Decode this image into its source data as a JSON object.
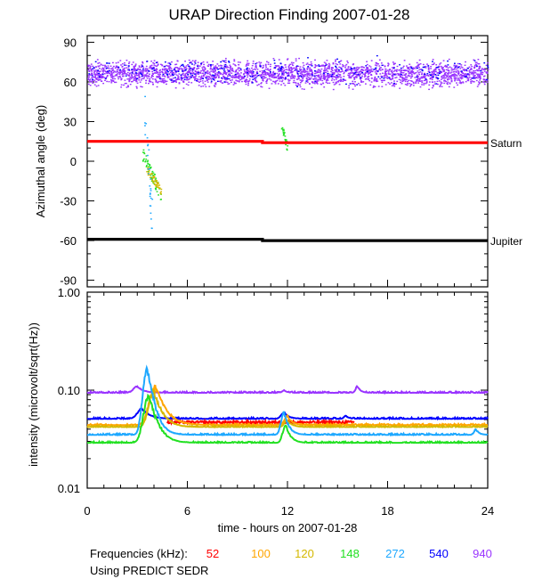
{
  "title": "URAP Direction Finding  2007-01-28",
  "footer": {
    "freq_label": "Frequencies (kHz):",
    "frequencies": [
      {
        "label": "52",
        "color": "#ff0000"
      },
      {
        "label": "100",
        "color": "#ffa500"
      },
      {
        "label": "120",
        "color": "#d4b800"
      },
      {
        "label": "148",
        "color": "#22e022"
      },
      {
        "label": "272",
        "color": "#1ea8ff"
      },
      {
        "label": "540",
        "color": "#0000ff"
      },
      {
        "label": "940",
        "color": "#9933ff"
      }
    ],
    "source_note": "Using PREDICT SEDR"
  },
  "chart_data": [
    {
      "type": "scatter",
      "ylabel": "Azimuthal angle (deg)",
      "xlim": [
        0,
        24
      ],
      "ylim": [
        -95,
        95
      ],
      "yticks": [
        "90",
        "60",
        "30",
        "0",
        "-30",
        "-60",
        "-90"
      ],
      "ytick_values": [
        90,
        60,
        30,
        0,
        -30,
        -60,
        -90
      ],
      "reference_lines": [
        {
          "name": "Saturn",
          "color": "#ff0000",
          "points": [
            [
              0,
              15
            ],
            [
              10.5,
              15
            ],
            [
              10.5,
              14
            ],
            [
              24,
              14
            ]
          ]
        },
        {
          "name": "Jupiter",
          "color": "#000000",
          "points": [
            [
              0,
              -59
            ],
            [
              10.5,
              -59
            ],
            [
              10.5,
              -60
            ],
            [
              24,
              -60
            ]
          ]
        }
      ],
      "scatter_groups": [
        {
          "frequency_khz": 940,
          "color": "#9933ff",
          "description": "continuous band",
          "x_range": [
            0,
            24
          ],
          "y_range": [
            53,
            80
          ]
        },
        {
          "frequency_khz": 540,
          "color": "#0000ff",
          "description": "sparse band",
          "x_range": [
            0,
            24
          ],
          "y_range": [
            55,
            82
          ]
        },
        {
          "frequency_khz": 148,
          "color": "#22e022",
          "x_range": [
            3.3,
            4.4
          ],
          "y_range": [
            -25,
            5
          ]
        },
        {
          "frequency_khz": 120,
          "color": "#d4b800",
          "x_range": [
            3.5,
            4.4
          ],
          "y_range": [
            -22,
            -5
          ]
        },
        {
          "frequency_khz": 272,
          "color": "#1ea8ff",
          "x_range": [
            3.4,
            3.9
          ],
          "y_range": [
            -50,
            40
          ]
        },
        {
          "frequency_khz": 148,
          "color": "#22e022",
          "x_range": [
            11.6,
            12
          ],
          "y_range": [
            8,
            28
          ]
        }
      ]
    },
    {
      "type": "line",
      "ylabel": "intensity (microvolt/sqrt(Hz))",
      "xlabel": "time - hours on 2007-01-28",
      "xlim": [
        0,
        24
      ],
      "xticks": [
        "0",
        "6",
        "12",
        "18",
        "24"
      ],
      "xtick_values": [
        0,
        6,
        12,
        18,
        24
      ],
      "yscale": "log",
      "ylim": [
        0.01,
        1.0
      ],
      "yticks": [
        "1.00",
        "0.10",
        "0.01"
      ],
      "ytick_values": [
        1.0,
        0.1,
        0.01
      ],
      "series": [
        {
          "frequency_khz": 940,
          "color": "#9933ff",
          "baseline": 0.094,
          "events": [
            {
              "t": 3.0,
              "peak": 0.11,
              "w": 0.4
            },
            {
              "t": 16.2,
              "peak": 0.11,
              "w": 0.2
            },
            {
              "t": 11.8,
              "peak": 0.1,
              "w": 0.2
            }
          ]
        },
        {
          "frequency_khz": 540,
          "color": "#0000ff",
          "baseline": 0.051,
          "events": [
            {
              "t": 3.3,
              "peak": 0.065,
              "w": 0.5
            },
            {
              "t": 11.8,
              "peak": 0.06,
              "w": 0.3
            },
            {
              "t": 15.5,
              "peak": 0.055,
              "w": 0.2
            }
          ]
        },
        {
          "frequency_khz": 52,
          "color": "#ff0000",
          "baseline": 0.047,
          "x_range": [
            4.8,
            16
          ],
          "events": []
        },
        {
          "frequency_khz": 100,
          "color": "#ffa500",
          "baseline": 0.044,
          "events": [
            {
              "t": 4.1,
              "peak": 0.11,
              "w": 0.6
            },
            {
              "t": 12.0,
              "peak": 0.055,
              "w": 0.3
            }
          ]
        },
        {
          "frequency_khz": 120,
          "color": "#d4b800",
          "baseline": 0.042,
          "events": [
            {
              "t": 4.0,
              "peak": 0.1,
              "w": 0.5
            },
            {
              "t": 12.0,
              "peak": 0.05,
              "w": 0.3
            }
          ]
        },
        {
          "frequency_khz": 272,
          "color": "#1ea8ff",
          "baseline": 0.035,
          "events": [
            {
              "t": 3.6,
              "peak": 0.17,
              "w": 0.4
            },
            {
              "t": 11.8,
              "peak": 0.06,
              "w": 0.3
            },
            {
              "t": 23.3,
              "peak": 0.04,
              "w": 0.2
            }
          ]
        },
        {
          "frequency_khz": 148,
          "color": "#22e022",
          "baseline": 0.029,
          "events": [
            {
              "t": 3.7,
              "peak": 0.09,
              "w": 0.5
            },
            {
              "t": 11.9,
              "peak": 0.045,
              "w": 0.3
            }
          ]
        }
      ]
    }
  ]
}
